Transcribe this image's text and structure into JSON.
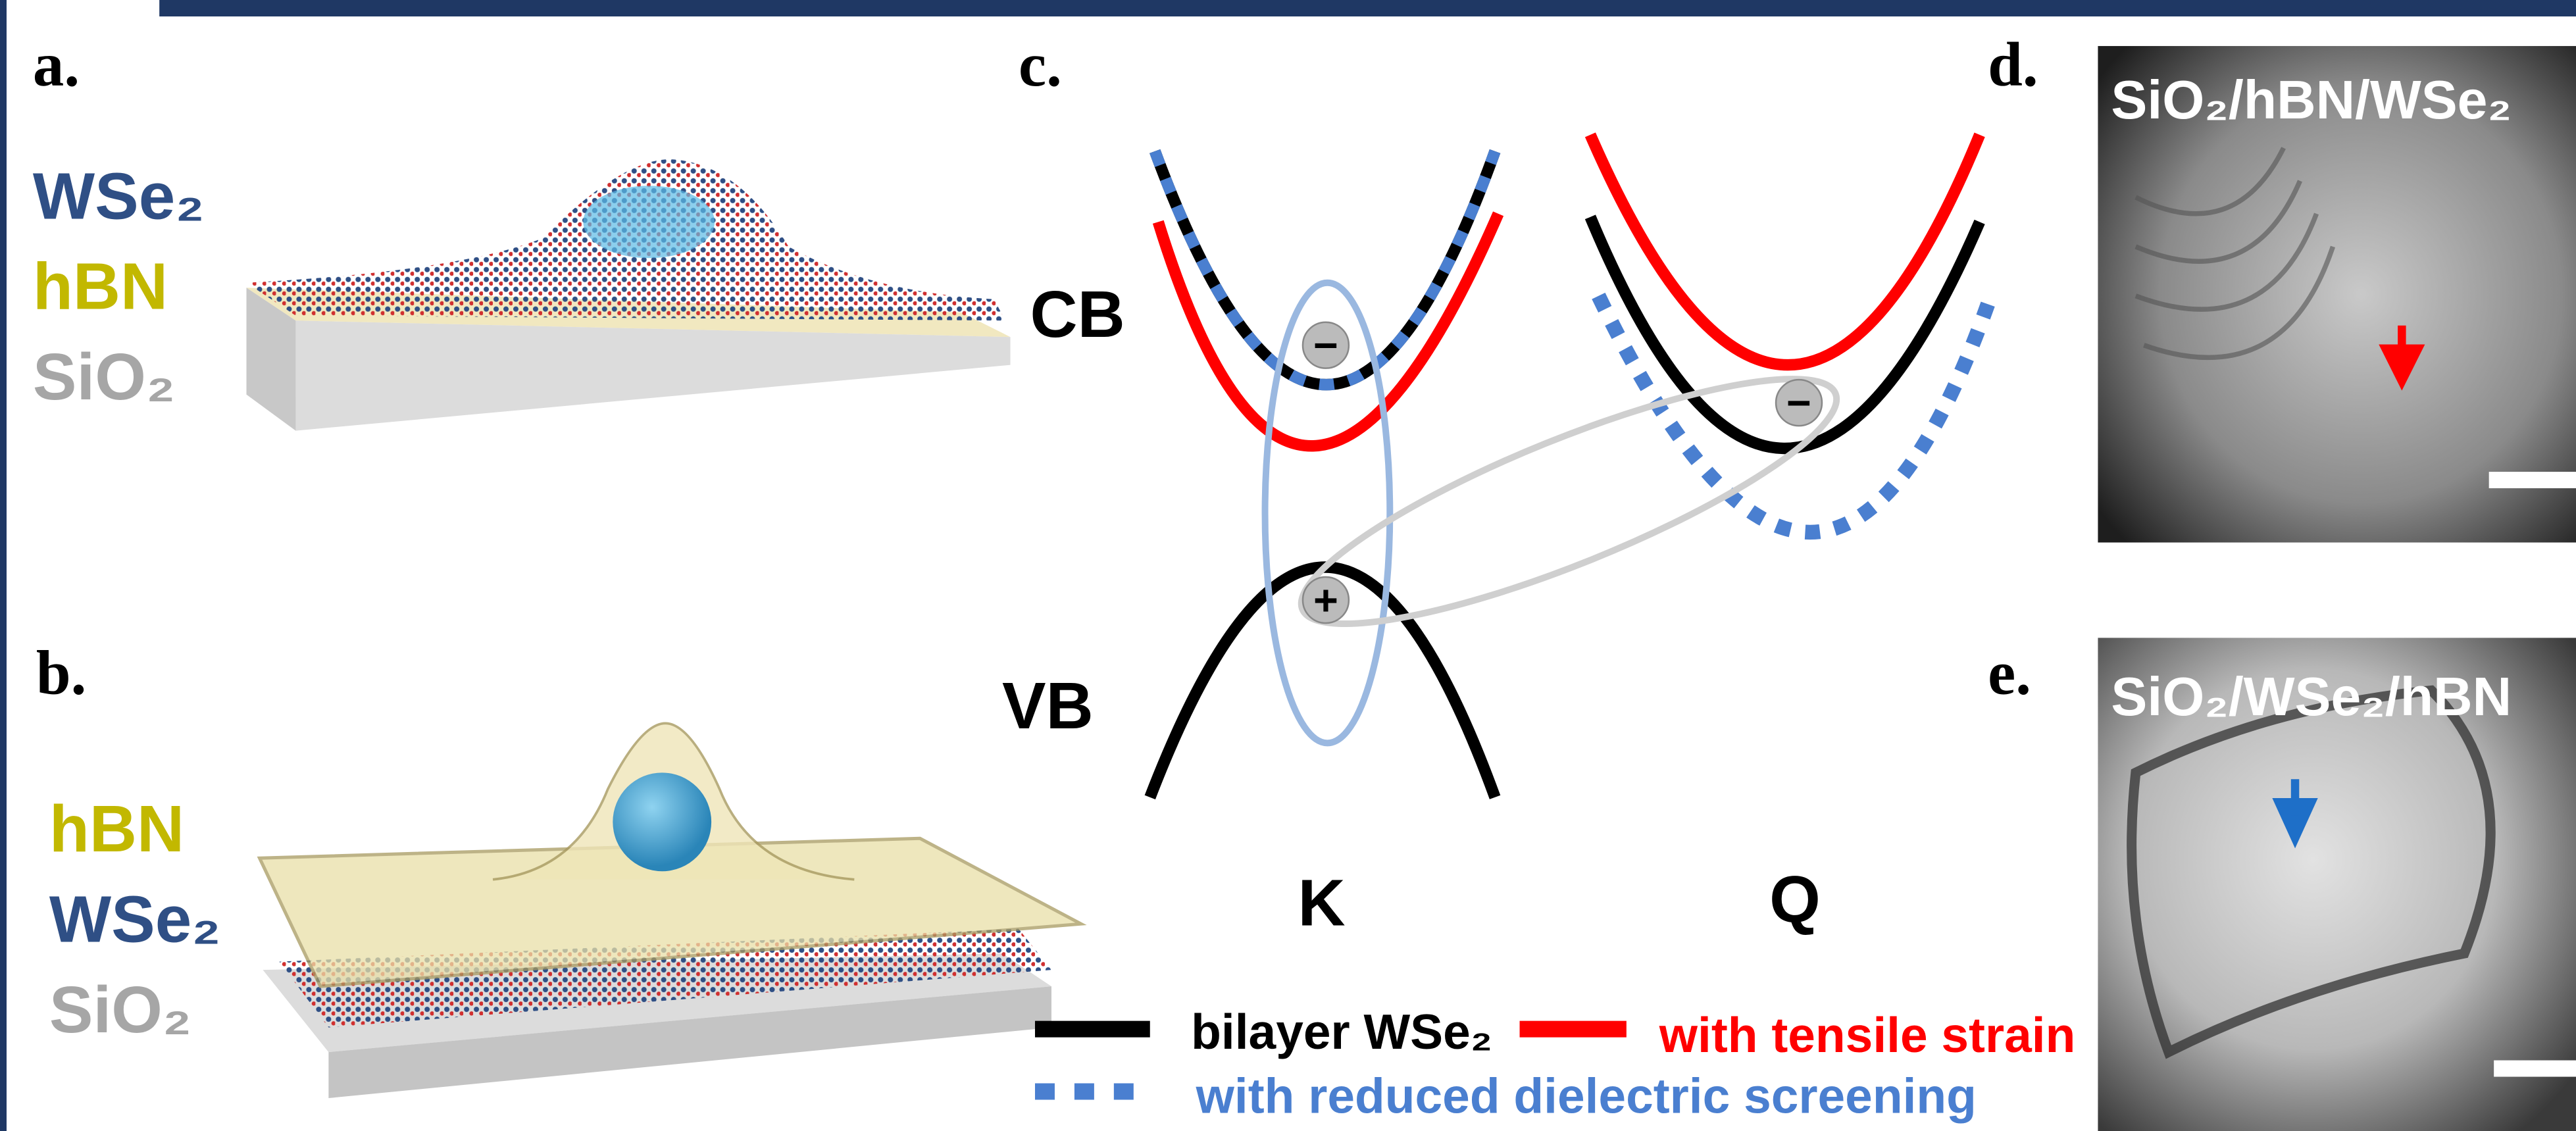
{
  "panel_a": {
    "label": "a.",
    "layers": [
      "WSe₂",
      "hBN",
      "SiO₂"
    ]
  },
  "panel_b": {
    "label": "b.",
    "layers": [
      "hBN",
      "WSe₂",
      "SiO₂"
    ]
  },
  "panel_c": {
    "label": "c.",
    "cb": "CB",
    "vb": "VB",
    "valley_k": "K",
    "valley_q": "Q",
    "electron": "−",
    "hole": "+",
    "legend": [
      "bilayer WSe₂",
      "with tensile strain",
      "with reduced dielectric screening"
    ]
  },
  "panel_d": {
    "label": "d.",
    "image_title": "SiO₂/hBN/WSe₂"
  },
  "panel_e": {
    "label": "e.",
    "image_title": "SiO₂/WSe₂/hBN"
  }
}
